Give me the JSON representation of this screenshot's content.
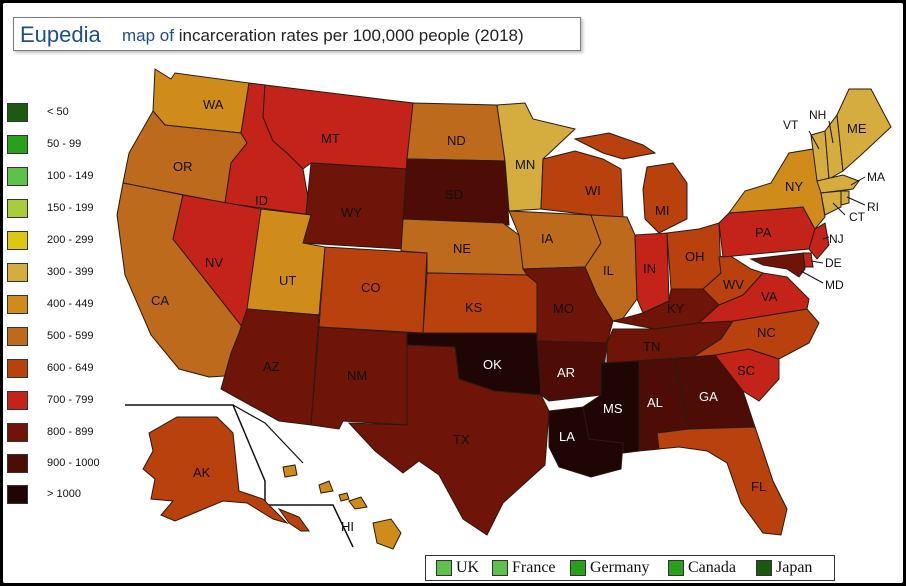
{
  "title": {
    "brand": "Eupedia",
    "prefix": "map of",
    "subject": "incarceration rates per 100,000 people (2018)"
  },
  "colors": {
    "lt50": "#1c5a10",
    "r50_99": "#27a01a",
    "r100_149": "#5ec24a",
    "r150_199": "#a8cc3c",
    "r200_299": "#dcc814",
    "r300_399": "#d4ad3e",
    "r400_449": "#d08c1a",
    "r500_599": "#bd6a1c",
    "r600_649": "#b8410e",
    "r700_799": "#c4231a",
    "r800_899": "#6e1408",
    "r900_1000": "#4e0c06",
    "gt1000": "#1f0604"
  },
  "legend": [
    {
      "label": "< 50",
      "color": "#1c5a10"
    },
    {
      "label": "50 - 99",
      "color": "#27a01a"
    },
    {
      "label": "100 - 149",
      "color": "#5ec24a"
    },
    {
      "label": "150 - 199",
      "color": "#a8cc3c"
    },
    {
      "label": "200 - 299",
      "color": "#dcc814"
    },
    {
      "label": "300 - 399",
      "color": "#d4ad3e"
    },
    {
      "label": "400 - 449",
      "color": "#d08c1a"
    },
    {
      "label": "500 - 599",
      "color": "#bd6a1c"
    },
    {
      "label": "600 - 649",
      "color": "#b8410e"
    },
    {
      "label": "700 - 799",
      "color": "#c4231a"
    },
    {
      "label": "800 - 899",
      "color": "#6e1408"
    },
    {
      "label": "900 - 1000",
      "color": "#4e0c06"
    },
    {
      "label": "> 1000",
      "color": "#1f0604"
    }
  ],
  "comparison": [
    {
      "label": "UK",
      "color": "#5ec24a"
    },
    {
      "label": "France",
      "color": "#5ec24a"
    },
    {
      "label": "Germany",
      "color": "#27a01a"
    },
    {
      "label": "Canada",
      "color": "#27a01a"
    },
    {
      "label": "Japan",
      "color": "#1c5a10"
    }
  ],
  "states": {
    "WA": "WA",
    "OR": "OR",
    "CA": "CA",
    "ID": "ID",
    "NV": "NV",
    "MT": "MT",
    "WY": "WY",
    "UT": "UT",
    "AZ": "AZ",
    "CO": "CO",
    "NM": "NM",
    "ND": "ND",
    "SD": "SD",
    "NE": "NE",
    "KS": "KS",
    "OK": "OK",
    "TX": "TX",
    "MN": "MN",
    "IA": "IA",
    "MO": "MO",
    "AR": "AR",
    "LA": "LA",
    "WI": "WI",
    "IL": "IL",
    "MI": "MI",
    "IN": "IN",
    "OH": "OH",
    "KY": "KY",
    "TN": "TN",
    "MS": "MS",
    "AL": "AL",
    "GA": "GA",
    "FL": "FL",
    "SC": "SC",
    "NC": "NC",
    "VA": "VA",
    "WV": "WV",
    "PA": "PA",
    "NY": "NY",
    "VT": "VT",
    "NH": "NH",
    "ME": "ME",
    "MA": "MA",
    "RI": "RI",
    "CT": "CT",
    "NJ": "NJ",
    "DE": "DE",
    "MD": "MD",
    "AK": "AK",
    "HI": "HI"
  }
}
